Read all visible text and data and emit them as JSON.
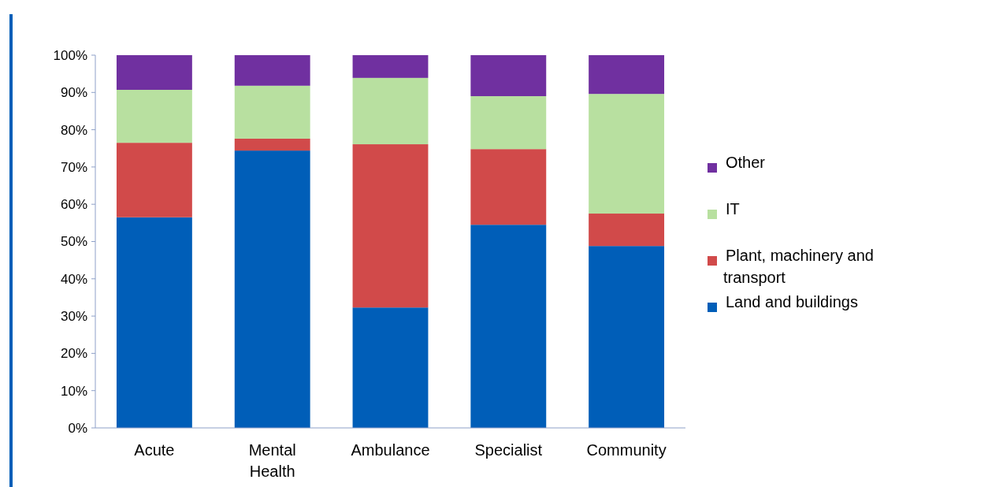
{
  "chart_data": {
    "type": "bar",
    "stacked": true,
    "categories": [
      "Acute",
      "Mental Health",
      "Ambulance",
      "Specialist",
      "Community"
    ],
    "series": [
      {
        "name": "Land and buildings",
        "color": "#005eb8",
        "values": [
          56.5,
          74.4,
          32.3,
          54.5,
          48.8
        ]
      },
      {
        "name": "Plant, machinery and transport",
        "color": "#d14a4a",
        "values": [
          20,
          3.2,
          43.8,
          20.3,
          8.7
        ]
      },
      {
        "name": "IT",
        "color": "#b8e0a0",
        "values": [
          14.2,
          14.2,
          17.8,
          14.2,
          32.1
        ]
      },
      {
        "name": "Other",
        "color": "#7030a0",
        "values": [
          9.3,
          8.2,
          6.1,
          11,
          10.4
        ]
      }
    ],
    "ylim": [
      0,
      100
    ],
    "yticks": [
      {
        "value": 0,
        "label": "0%"
      },
      {
        "value": 10,
        "label": "10%"
      },
      {
        "value": 20,
        "label": "20%"
      },
      {
        "value": 30,
        "label": "30%"
      },
      {
        "value": 40,
        "label": "40%"
      },
      {
        "value": 50,
        "label": "50%"
      },
      {
        "value": 60,
        "label": "60%"
      },
      {
        "value": 70,
        "label": "70%"
      },
      {
        "value": 80,
        "label": "80%"
      },
      {
        "value": 90,
        "label": "90%"
      },
      {
        "value": 100,
        "label": "100%"
      }
    ],
    "grid": false,
    "legend": "right"
  }
}
